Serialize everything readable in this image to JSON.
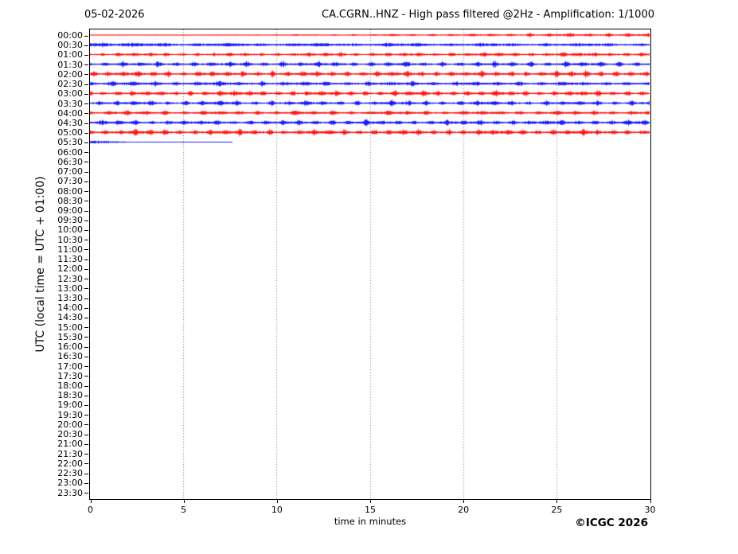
{
  "header": {
    "date": "05-02-2026",
    "title": "CA.CGRN..HNZ - High pass filtered @2Hz - Amplification: 1/1000"
  },
  "footer": {
    "copyright": "©ICGC 2026"
  },
  "chart_data": {
    "type": "line",
    "subtype": "helicorder-seismogram",
    "title": "CA.CGRN..HNZ - High pass filtered @2Hz - Amplification: 1/1000",
    "date": "05-02-2026",
    "xlabel": "time in minutes",
    "ylabel": "UTC (local time = UTC + 01:00)",
    "xlim": [
      0,
      30
    ],
    "x_ticks": [
      0,
      5,
      10,
      15,
      20,
      25,
      30
    ],
    "grid_minutes": [
      5,
      10,
      15,
      20,
      25
    ],
    "grid_style": "vertical dotted gray",
    "trace_colors": {
      "even_rows": "#ff0000",
      "odd_rows": "#0000ff"
    },
    "y_ticks": [
      "00:00",
      "00:30",
      "01:00",
      "01:30",
      "02:00",
      "02:30",
      "03:00",
      "03:30",
      "04:00",
      "04:30",
      "05:00",
      "05:30",
      "06:00",
      "06:30",
      "07:00",
      "07:30",
      "08:00",
      "08:30",
      "09:00",
      "09:30",
      "10:00",
      "10:30",
      "11:00",
      "11:30",
      "12:00",
      "12:30",
      "13:00",
      "13:30",
      "14:00",
      "14:30",
      "15:00",
      "15:30",
      "16:00",
      "16:30",
      "17:00",
      "17:30",
      "18:00",
      "18:30",
      "19:00",
      "19:30",
      "20:00",
      "20:30",
      "21:00",
      "21:30",
      "22:00",
      "22:30",
      "23:00",
      "23:30"
    ],
    "traces": [
      {
        "time": "00:00",
        "color": "#ff0000",
        "start": 0,
        "end": 30,
        "base0": 0.25,
        "base1": 0.9,
        "burst": 1.9,
        "burst_ramp": true,
        "period": 1.05
      },
      {
        "time": "00:30",
        "color": "#0000ff",
        "start": 0,
        "end": 30,
        "base0": 1.25,
        "base1": 1.05,
        "burst": 0.9,
        "period": 1.7,
        "head": 0.9,
        "head_len": 2.2
      },
      {
        "time": "01:00",
        "color": "#ff0000",
        "start": 0,
        "end": 30,
        "base0": 0.8,
        "base1": 1.1,
        "burst": 1.4,
        "period": 0.85
      },
      {
        "time": "01:30",
        "color": "#0000ff",
        "start": 0,
        "end": 30,
        "base0": 1.0,
        "base1": 1.0,
        "burst": 2.3,
        "period": 0.95
      },
      {
        "time": "02:00",
        "color": "#ff0000",
        "start": 0,
        "end": 30,
        "base0": 1.05,
        "base1": 1.05,
        "burst": 2.4,
        "period": 0.8
      },
      {
        "time": "02:30",
        "color": "#0000ff",
        "start": 0,
        "end": 30,
        "base0": 1.1,
        "base1": 1.0,
        "burst": 1.7,
        "period": 1.15
      },
      {
        "time": "03:00",
        "color": "#ff0000",
        "start": 0,
        "end": 30,
        "base0": 1.05,
        "base1": 1.05,
        "burst": 2.2,
        "period": 0.78
      },
      {
        "time": "03:30",
        "color": "#0000ff",
        "start": 0,
        "end": 30,
        "base0": 1.05,
        "base1": 1.0,
        "burst": 1.9,
        "period": 0.92
      },
      {
        "time": "04:00",
        "color": "#ff0000",
        "start": 0,
        "end": 30,
        "base0": 1.0,
        "base1": 1.0,
        "burst": 1.6,
        "period": 1.0
      },
      {
        "time": "04:30",
        "color": "#0000ff",
        "start": 0,
        "end": 30,
        "base0": 1.05,
        "base1": 1.05,
        "burst": 2.0,
        "period": 0.88
      },
      {
        "time": "05:00",
        "color": "#ff0000",
        "start": 0,
        "end": 30,
        "base0": 1.15,
        "base1": 1.15,
        "burst": 2.2,
        "period": 0.8
      },
      {
        "time": "05:30",
        "color": "#0000ff",
        "start": 0,
        "end": 7.65,
        "base0": 0.22,
        "base1": 0.22,
        "burst": 0,
        "period": 1.0,
        "head": 1.5,
        "head_len": 2.6
      }
    ],
    "notes": "Rows 06:00 through 23:30 contain no recorded data"
  }
}
